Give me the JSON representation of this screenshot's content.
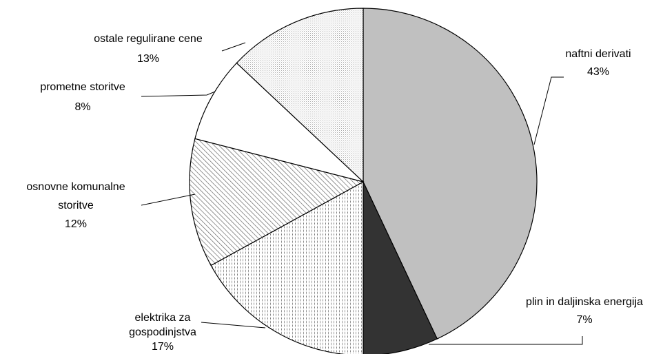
{
  "chart_data": {
    "type": "pie",
    "categories": [
      "naftni derivati",
      "plin in daljinska energija",
      "elektrika za gospodinjstva",
      "osnovne komunalne storitve",
      "prometne storitve",
      "ostale regulirane cene"
    ],
    "values": [
      43,
      7,
      17,
      12,
      8,
      13
    ],
    "value_labels": [
      "43%",
      "7%",
      "17%",
      "12%",
      "8%",
      "13%"
    ],
    "colors": [
      "#c0c0c0",
      "#333333",
      "url(#vlines)",
      "url(#hatch)",
      "#ffffff",
      "url(#dots)"
    ],
    "start_angle": 0,
    "direction": "clockwise"
  }
}
